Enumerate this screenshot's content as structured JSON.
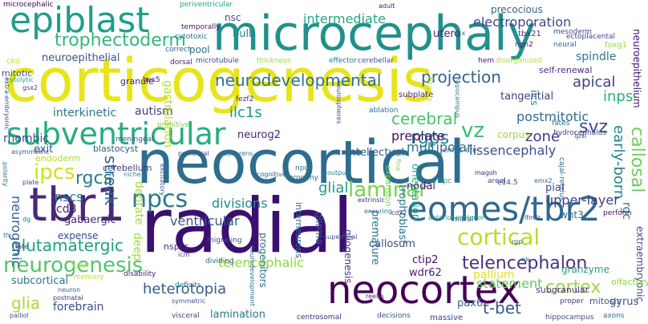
{
  "words": [
    {
      "text": "corticogenesis",
      "color": "#e8e41a"
    },
    {
      "text": "neocortical",
      "color": "#2d6e8e"
    },
    {
      "text": "radial",
      "color": "#3b0f70"
    },
    {
      "text": "microcephaly",
      "color": "#21918c"
    },
    {
      "text": "neocortex",
      "color": "#440154"
    },
    {
      "text": "tbr1",
      "color": "#482878"
    },
    {
      "text": "eomes/tbr2",
      "color": "#31688e"
    },
    {
      "text": "epiblast",
      "color": "#1f9e89"
    },
    {
      "text": "subventricular",
      "color": "#27ad81"
    },
    {
      "text": "trophectoderm",
      "color": "#35b779"
    },
    {
      "text": "neurogenesis",
      "color": "#54c568"
    },
    {
      "text": "telencephalon",
      "color": "#46337e"
    },
    {
      "text": "ipcs",
      "color": "#d0e11c"
    },
    {
      "text": "npcs",
      "color": "#2a788e"
    },
    {
      "text": "laminar",
      "color": "#7ad151"
    },
    {
      "text": "cortical",
      "color": "#b5de2b"
    },
    {
      "text": "cerebral",
      "color": "#4ac16d"
    },
    {
      "text": "vz",
      "color": "#3dbc74"
    },
    {
      "text": "intermediate",
      "color": "#22a884"
    },
    {
      "text": "electroporation",
      "color": "#3f4788"
    },
    {
      "text": "projection",
      "color": "#33638d"
    },
    {
      "text": "neurodevelopmental",
      "color": "#2c728e"
    },
    {
      "text": "apical",
      "color": "#404387"
    },
    {
      "text": "inps",
      "color": "#29af7f"
    },
    {
      "text": "rgcs",
      "color": "#287c8e"
    },
    {
      "text": "glutamatergic",
      "color": "#1fa088"
    },
    {
      "text": "glia",
      "color": "#a8db34"
    },
    {
      "text": "heterotopia",
      "color": "#365c8d"
    },
    {
      "text": "t-bet",
      "color": "#3b528b"
    },
    {
      "text": "cortex",
      "color": "#9bd93c"
    },
    {
      "text": "glial",
      "color": "#1e9b8a"
    },
    {
      "text": "rgps",
      "color": "#26828e"
    },
    {
      "text": "zone",
      "color": "#453781"
    },
    {
      "text": "svz",
      "color": "#3e4a89"
    },
    {
      "text": "postmitotic",
      "color": "#2e6f8e"
    },
    {
      "text": "callosal",
      "color": "#6ccd5a"
    },
    {
      "text": "early-born",
      "color": "#25838e"
    },
    {
      "text": "neurogenic",
      "color": "#355f8d"
    },
    {
      "text": "streak",
      "color": "#31688e"
    },
    {
      "text": "ventricular",
      "color": "#38588c"
    },
    {
      "text": "divisions",
      "color": "#23898e"
    },
    {
      "text": "upper-layer",
      "color": "#433e85"
    },
    {
      "text": "multipolar",
      "color": "#2c738e"
    },
    {
      "text": "lissencephaly",
      "color": "#3d4e8a"
    },
    {
      "text": "preplate",
      "color": "#471365"
    },
    {
      "text": "telencephalic",
      "color": "#8fd744"
    },
    {
      "text": "forebrain",
      "color": "#3c4f8a"
    },
    {
      "text": "pallium",
      "color": "#e5e419"
    },
    {
      "text": "statement",
      "color": "#63cb5f"
    },
    {
      "text": "neuroepithelial",
      "color": "#39558c"
    },
    {
      "text": "interkinetic",
      "color": "#2b758e"
    },
    {
      "text": "rhombic",
      "color": "#3f4889"
    },
    {
      "text": "ilc1s",
      "color": "#1f988b"
    },
    {
      "text": "neurog2",
      "color": "#482576"
    },
    {
      "text": "autism",
      "color": "#443a83"
    },
    {
      "text": "gastrulation",
      "color": "#bade28"
    },
    {
      "text": "nscs",
      "color": "#287d8e"
    },
    {
      "text": "cd8",
      "color": "#481f70"
    },
    {
      "text": "gabaergic",
      "color": "#472c7a"
    },
    {
      "text": "subcortical",
      "color": "#29798e"
    },
    {
      "text": "lamination",
      "color": "#2a768e"
    },
    {
      "text": "wdr62",
      "color": "#482173"
    },
    {
      "text": "ctip2",
      "color": "#470e61"
    },
    {
      "text": "callosum",
      "color": "#3c4f8a"
    },
    {
      "text": "pax6",
      "color": "#34618d"
    },
    {
      "text": "gyrus",
      "color": "#3b528b"
    },
    {
      "text": "rgc",
      "color": "#2c728e"
    },
    {
      "text": "spindle",
      "color": "#29798e"
    },
    {
      "text": "utero",
      "color": "#482475"
    },
    {
      "text": "nsc",
      "color": "#3c508b"
    },
    {
      "text": "bulb",
      "color": "#24868e"
    },
    {
      "text": "precocious",
      "color": "#32648e"
    },
    {
      "text": "mitotic",
      "color": "#37598c"
    },
    {
      "text": "pool",
      "color": "#2e6e8e"
    },
    {
      "text": "granule",
      "color": "#482374"
    },
    {
      "text": "tangential",
      "color": "#414287"
    },
    {
      "text": "exit",
      "color": "#3e4989"
    },
    {
      "text": "endoderm",
      "color": "#b2dd2d"
    },
    {
      "text": "trophoblast",
      "color": "#2a788e"
    },
    {
      "text": "nodal",
      "color": "#481a6c"
    },
    {
      "text": "wnt3",
      "color": "#2f6c8e"
    },
    {
      "text": "pial",
      "color": "#3d4d8a"
    },
    {
      "text": "intellectual",
      "color": "#34608d"
    },
    {
      "text": "premature",
      "color": "#2d718e"
    },
    {
      "text": "subplate",
      "color": "#481f70"
    },
    {
      "text": "corpus",
      "color": "#a2da37"
    },
    {
      "text": "granzyme",
      "color": "#1fa187"
    },
    {
      "text": "mitosis",
      "color": "#38598c"
    },
    {
      "text": "cerebellum",
      "color": "#424086"
    },
    {
      "text": "blastocyst",
      "color": "#39568c"
    },
    {
      "text": "dentate",
      "color": "#a8db34"
    },
    {
      "text": "subgranular",
      "color": "#472f7d"
    },
    {
      "text": "glioma",
      "color": "#355e8d"
    },
    {
      "text": "expense",
      "color": "#3f4788"
    },
    {
      "text": "progenitors",
      "color": "#2e6e8e"
    },
    {
      "text": "interneurons",
      "color": "#31688e"
    },
    {
      "text": "self-renewal",
      "color": "#462f7c"
    },
    {
      "text": "gliogenesis",
      "color": "#463480"
    },
    {
      "text": "ilcs",
      "color": "#25848e"
    },
    {
      "text": "extraembryonic",
      "color": "#3d4d8a"
    },
    {
      "text": "neuroepithelium",
      "color": "#3b0f70"
    },
    {
      "text": "olfactory",
      "color": "#8fd744"
    },
    {
      "text": "orientation",
      "color": "#25ab82"
    },
    {
      "text": "deep",
      "color": "#a0da39"
    },
    {
      "text": "memory",
      "color": "#c2df23"
    },
    {
      "text": "killer",
      "color": "#d8e219"
    },
    {
      "text": "primitive",
      "color": "#75d054"
    },
    {
      "text": "meningeal",
      "color": "#3e4c8a"
    },
    {
      "text": "hes5",
      "color": "#471063"
    },
    {
      "text": "fezf2",
      "color": "#472d7b"
    },
    {
      "text": "microtubule",
      "color": "#3e4a89"
    },
    {
      "text": "dorsal",
      "color": "#482576"
    },
    {
      "text": "thickness",
      "color": "#9dd93b"
    },
    {
      "text": "cerebellar",
      "color": "#3a548c"
    },
    {
      "text": "effector",
      "color": "#2c728e"
    },
    {
      "text": "hem",
      "color": "#481467"
    },
    {
      "text": "disorganized",
      "color": "#b0dd2f"
    },
    {
      "text": "neural",
      "color": "#2f6b8e"
    },
    {
      "text": "mesoderm",
      "color": "#3d4e8a"
    },
    {
      "text": "tbx21",
      "color": "#45337d"
    },
    {
      "text": "ngn2",
      "color": "#482374"
    },
    {
      "text": "ectoplacental",
      "color": "#404688"
    },
    {
      "text": "foxg1",
      "color": "#99d83d"
    },
    {
      "text": "cko",
      "color": "#c8e020"
    },
    {
      "text": "correct",
      "color": "#34618d"
    },
    {
      "text": "cytotoxic",
      "color": "#2a768e"
    },
    {
      "text": "temporally",
      "color": "#471063"
    },
    {
      "text": "periventricular",
      "color": "#1fa287"
    },
    {
      "text": "microcephalic",
      "color": "#440154"
    },
    {
      "text": "dcx",
      "color": "#31678e"
    },
    {
      "text": "ablation",
      "color": "#2c738e"
    },
    {
      "text": "brains",
      "color": "#bfdf25"
    },
    {
      "text": "hypocampus",
      "color": "#2a778e"
    },
    {
      "text": "fates",
      "color": "#2b748e"
    },
    {
      "text": "ipsi",
      "color": "#3a548c"
    },
    {
      "text": "hydrocephalus",
      "color": "#3f4889"
    },
    {
      "text": "emx1-cre",
      "color": "#2e6f8e"
    },
    {
      "text": "fina",
      "color": "#7ad151"
    },
    {
      "text": "npc",
      "color": "#2d708e"
    },
    {
      "text": "progeny",
      "color": "#30698e"
    },
    {
      "text": "output",
      "color": "#2a788e"
    },
    {
      "text": "cognitive",
      "color": "#33628d"
    },
    {
      "text": "areal",
      "color": "#3e4a89"
    },
    {
      "text": "e14.5",
      "color": "#3d4d8a"
    },
    {
      "text": "nspc",
      "color": "#1f958b"
    },
    {
      "text": "emx2",
      "color": "#2f6b8e"
    },
    {
      "text": "magoh",
      "color": "#482576"
    },
    {
      "text": "perforin",
      "color": "#471365"
    },
    {
      "text": "cdx2",
      "color": "#46307e"
    },
    {
      "text": "rgp",
      "color": "#3b518b"
    },
    {
      "text": "lfmfz",
      "color": "#3c4f8a"
    },
    {
      "text": "mitral",
      "color": "#38588c"
    },
    {
      "text": "expansion",
      "color": "#7ad151"
    },
    {
      "text": "extrinsic",
      "color": "#46307e"
    },
    {
      "text": "ensuring",
      "color": "#2c718e"
    },
    {
      "text": "anterior-posterior",
      "color": "#1fa088"
    },
    {
      "text": "superficial",
      "color": "#39568c"
    },
    {
      "text": "neurodevelopment",
      "color": "#2d718e"
    },
    {
      "text": "migrating",
      "color": "#3e4c8a"
    },
    {
      "text": "dividing",
      "color": "#35608d"
    },
    {
      "text": "disability",
      "color": "#482071"
    },
    {
      "text": "nspcs",
      "color": "#45337d"
    },
    {
      "text": "icm",
      "color": "#404588"
    },
    {
      "text": "reelin",
      "color": "#482475"
    },
    {
      "text": "neuron",
      "color": "#34618d"
    },
    {
      "text": "postnatal",
      "color": "#45347f"
    },
    {
      "text": "symmetric",
      "color": "#3b528b"
    },
    {
      "text": "deficits",
      "color": "#27808e"
    },
    {
      "text": "visceral",
      "color": "#424086"
    },
    {
      "text": "centrosomal",
      "color": "#482878"
    },
    {
      "text": "decisions",
      "color": "#3a538b"
    },
    {
      "text": "massive",
      "color": "#424186"
    },
    {
      "text": "hippocampus",
      "color": "#3e4c8a"
    },
    {
      "text": "axons",
      "color": "#2b758e"
    },
    {
      "text": "proper",
      "color": "#46327e"
    },
    {
      "text": "palliol",
      "color": "#3e4a89"
    },
    {
      "text": "polarity",
      "color": "#2c728e"
    },
    {
      "text": "plate",
      "color": "#3f4889"
    },
    {
      "text": "asymmetric",
      "color": "#38598c"
    },
    {
      "text": "dg",
      "color": "#2a778e"
    },
    {
      "text": "late",
      "color": "#3f4788"
    },
    {
      "text": "th",
      "color": "#2c728e"
    },
    {
      "text": "gsx2",
      "color": "#404387"
    },
    {
      "text": "extra-embryonic",
      "color": "#3c508b"
    },
    {
      "text": "cytolytic",
      "color": "#1fa287"
    },
    {
      "text": "niche",
      "color": "#21918c"
    },
    {
      "text": "adherens",
      "color": "#2b748e"
    },
    {
      "text": "proneural",
      "color": "#3f4788"
    },
    {
      "text": "excitatory",
      "color": "#3a538b"
    },
    {
      "text": "neurospheres",
      "color": "#3e4c8a"
    },
    {
      "text": "cajal-retzius",
      "color": "#2e6d8e"
    },
    {
      "text": "adult",
      "color": "#482071"
    },
    {
      "text": "nk",
      "color": "#2f6c8e"
    }
  ]
}
